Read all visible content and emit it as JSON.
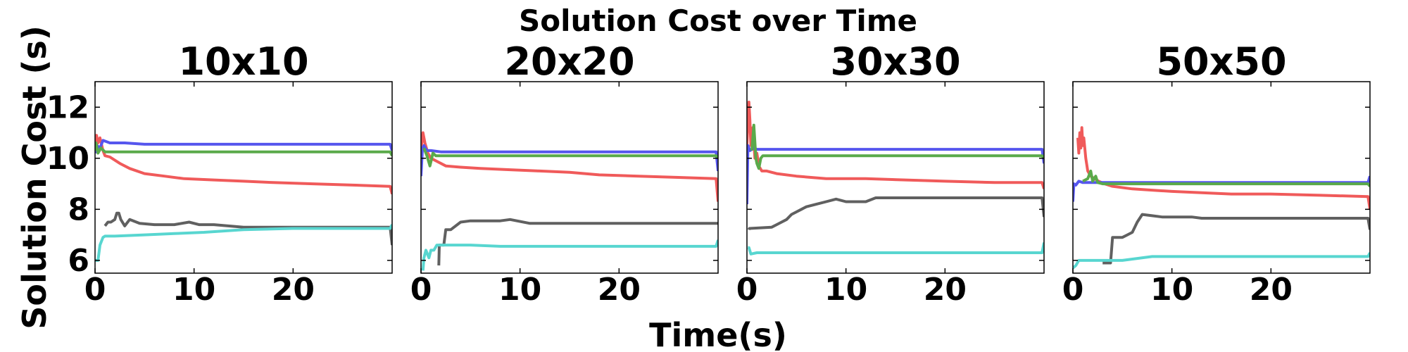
{
  "figure": {
    "title": "Solution Cost over Time",
    "xlabel": "Time(s)",
    "ylabel": "Solution Cost (s)"
  },
  "colors": {
    "red": "#f05a5a",
    "blue": "#5656ee",
    "green": "#5aaa4a",
    "gray": "#606060",
    "cyan": "#58d6d0"
  },
  "chart_data": [
    {
      "type": "line",
      "title": "10x10",
      "xlim": [
        0,
        30
      ],
      "ylim": [
        5.5,
        13
      ],
      "xticks": [
        0,
        10,
        20
      ],
      "yticks": [
        6,
        8,
        10,
        12
      ],
      "series": [
        {
          "color": "#f05a5a",
          "x": [
            0,
            0.15,
            0.3,
            0.5,
            0.8,
            1.0,
            1.5,
            2.5,
            3.5,
            5,
            7,
            9,
            12,
            15,
            18,
            22,
            26,
            29.8,
            30
          ],
          "y": [
            10.3,
            10.9,
            10.6,
            10.8,
            10.3,
            10.1,
            10.05,
            9.8,
            9.6,
            9.4,
            9.3,
            9.2,
            9.15,
            9.1,
            9.05,
            9.0,
            8.95,
            8.9,
            8.6
          ]
        },
        {
          "color": "#5656ee",
          "x": [
            0,
            0.2,
            0.5,
            0.8,
            1.5,
            3,
            5,
            10,
            20,
            29.8,
            30
          ],
          "y": [
            10.2,
            10.5,
            10.4,
            10.7,
            10.6,
            10.6,
            10.55,
            10.55,
            10.55,
            10.55,
            10.3
          ]
        },
        {
          "color": "#5aaa4a",
          "x": [
            0,
            0.1,
            0.3,
            0.6,
            1.0,
            5,
            10,
            20,
            29.8,
            30
          ],
          "y": [
            10.3,
            10.6,
            10.2,
            10.4,
            10.25,
            10.25,
            10.25,
            10.25,
            10.25,
            10.1
          ]
        },
        {
          "color": "#606060",
          "x": [
            1.0,
            1.3,
            1.6,
            2.0,
            2.2,
            2.4,
            2.6,
            3.0,
            3.5,
            4.5,
            6,
            8,
            9.5,
            10.5,
            12,
            15,
            20,
            25,
            29.8,
            30
          ],
          "y": [
            7.35,
            7.5,
            7.5,
            7.6,
            7.85,
            7.85,
            7.6,
            7.35,
            7.6,
            7.45,
            7.4,
            7.4,
            7.5,
            7.4,
            7.4,
            7.3,
            7.3,
            7.3,
            7.3,
            6.6
          ]
        },
        {
          "color": "#58d6d0",
          "x": [
            0,
            0.3,
            0.5,
            0.8,
            1.0,
            2,
            5,
            8,
            11,
            15,
            20,
            25,
            29.8,
            30
          ],
          "y": [
            6.0,
            6.0,
            6.6,
            6.9,
            6.95,
            6.95,
            7.0,
            7.05,
            7.1,
            7.2,
            7.25,
            7.25,
            7.25,
            7.4
          ]
        }
      ]
    },
    {
      "type": "line",
      "title": "20x20",
      "xlim": [
        0,
        30
      ],
      "ylim": [
        5.5,
        13
      ],
      "xticks": [
        0,
        10,
        20
      ],
      "yticks": [
        6,
        8,
        10,
        12
      ],
      "series": [
        {
          "color": "#f05a5a",
          "x": [
            0,
            0.2,
            0.4,
            0.7,
            1.0,
            1.5,
            2.5,
            4,
            6,
            9,
            12,
            15,
            18,
            22,
            26,
            29.8,
            30
          ],
          "y": [
            10.3,
            11.0,
            10.6,
            10.2,
            10.0,
            9.9,
            9.7,
            9.65,
            9.6,
            9.55,
            9.5,
            9.45,
            9.35,
            9.3,
            9.25,
            9.2,
            8.3
          ]
        },
        {
          "color": "#5656ee",
          "x": [
            0,
            0.15,
            0.3,
            0.6,
            1.0,
            2,
            5,
            10,
            20,
            29.8,
            30
          ],
          "y": [
            9.3,
            10.4,
            10.5,
            10.3,
            10.3,
            10.25,
            10.25,
            10.25,
            10.25,
            10.25,
            9.5
          ]
        },
        {
          "color": "#5aaa4a",
          "x": [
            0.3,
            0.6,
            0.9,
            1.2,
            1.5,
            2,
            5,
            10,
            20,
            29.8,
            30
          ],
          "y": [
            10.4,
            10.1,
            9.7,
            10.2,
            10.1,
            10.1,
            10.1,
            10.1,
            10.1,
            10.1,
            10.0
          ]
        },
        {
          "color": "#606060",
          "x": [
            1.8,
            1.85,
            2.0,
            2.3,
            2.5,
            3,
            4,
            5,
            8,
            9,
            11,
            30
          ],
          "y": [
            5.8,
            6.6,
            6.6,
            6.6,
            7.2,
            7.2,
            7.5,
            7.55,
            7.55,
            7.6,
            7.45,
            7.45
          ]
        },
        {
          "color": "#58d6d0",
          "x": [
            0.2,
            0.3,
            0.5,
            0.8,
            1.0,
            1.3,
            1.6,
            2.0,
            3,
            5,
            8,
            12,
            20,
            29.8,
            30
          ],
          "y": [
            5.6,
            6.1,
            6.4,
            6.1,
            6.4,
            6.4,
            6.6,
            6.6,
            6.6,
            6.6,
            6.55,
            6.55,
            6.55,
            6.55,
            6.8
          ]
        }
      ]
    },
    {
      "type": "line",
      "title": "30x30",
      "xlim": [
        0,
        30
      ],
      "ylim": [
        5.5,
        13
      ],
      "xticks": [
        0,
        10,
        20
      ],
      "yticks": [
        6,
        8,
        10,
        12
      ],
      "series": [
        {
          "color": "#f05a5a",
          "x": [
            0,
            0.2,
            0.3,
            0.4,
            0.6,
            0.8,
            1.0,
            1.2,
            1.5,
            2,
            3,
            5,
            8,
            12,
            20,
            25,
            29.8,
            30
          ],
          "y": [
            10.5,
            12.2,
            11.5,
            10.5,
            11.2,
            10.0,
            10.2,
            9.7,
            9.5,
            9.5,
            9.4,
            9.3,
            9.2,
            9.2,
            9.1,
            9.05,
            9.05,
            8.8
          ]
        },
        {
          "color": "#5656ee",
          "x": [
            0,
            0.1,
            0.3,
            0.7,
            1.0,
            2,
            5,
            10,
            20,
            29.8,
            30
          ],
          "y": [
            8.2,
            10.5,
            10.3,
            10.4,
            10.35,
            10.35,
            10.35,
            10.35,
            10.35,
            10.35,
            9.8
          ]
        },
        {
          "color": "#5aaa4a",
          "x": [
            0.5,
            0.7,
            0.9,
            1.0,
            1.2,
            1.4,
            1.6,
            2.0,
            5,
            10,
            20,
            29.8,
            30
          ],
          "y": [
            10.3,
            11.3,
            10.0,
            9.8,
            9.6,
            10.0,
            10.1,
            10.1,
            10.1,
            10.1,
            10.1,
            10.1,
            10.0
          ]
        },
        {
          "color": "#606060",
          "x": [
            0.2,
            0.25,
            2.5,
            3,
            3.5,
            4,
            4.5,
            5,
            5.5,
            6,
            7,
            8,
            9,
            10,
            12,
            13,
            15,
            29.8,
            30
          ],
          "y": [
            7.2,
            7.25,
            7.3,
            7.4,
            7.5,
            7.6,
            7.8,
            7.9,
            8.0,
            8.1,
            8.2,
            8.3,
            8.4,
            8.3,
            8.3,
            8.45,
            8.45,
            8.45,
            7.7
          ]
        },
        {
          "color": "#58d6d0",
          "x": [
            0.1,
            0.2,
            0.4,
            1.0,
            2,
            5,
            10,
            20,
            29.8,
            30
          ],
          "y": [
            6.5,
            6.5,
            6.25,
            6.3,
            6.3,
            6.3,
            6.3,
            6.3,
            6.3,
            6.7
          ]
        }
      ]
    },
    {
      "type": "line",
      "title": "50x50",
      "xlim": [
        0,
        30
      ],
      "ylim": [
        5.5,
        13
      ],
      "xticks": [
        0,
        10,
        20
      ],
      "yticks": [
        6,
        8,
        10,
        12
      ],
      "series": [
        {
          "color": "#f05a5a",
          "x": [
            0.5,
            0.6,
            0.7,
            0.8,
            0.9,
            1.0,
            1.1,
            1.3,
            1.5,
            1.8,
            2.2,
            2.6,
            3.2,
            4,
            6,
            8,
            10,
            13,
            16,
            20,
            25,
            29.8,
            30
          ],
          "y": [
            10.8,
            10.2,
            11.0,
            10.4,
            11.2,
            10.5,
            10.8,
            10.0,
            9.5,
            9.3,
            9.2,
            9.1,
            9.0,
            8.9,
            8.8,
            8.75,
            8.7,
            8.65,
            8.6,
            8.6,
            8.55,
            8.5,
            8.0
          ]
        },
        {
          "color": "#5656ee",
          "x": [
            0,
            0.1,
            0.3,
            0.6,
            1.0,
            2,
            5,
            10,
            20,
            29.8,
            30
          ],
          "y": [
            8.3,
            9.0,
            8.95,
            9.1,
            9.05,
            9.05,
            9.05,
            9.05,
            9.05,
            9.05,
            9.3
          ]
        },
        {
          "color": "#5aaa4a",
          "x": [
            1.0,
            1.5,
            1.8,
            2.0,
            2.3,
            2.5,
            3,
            5,
            10,
            20,
            29.8,
            30
          ],
          "y": [
            9.1,
            9.2,
            9.5,
            9.1,
            9.3,
            9.05,
            9.0,
            9.0,
            9.0,
            9.0,
            9.0,
            8.9
          ]
        },
        {
          "color": "#606060",
          "x": [
            3.0,
            3.8,
            4.0,
            5,
            5.5,
            6,
            6.5,
            7,
            8,
            9,
            10,
            12,
            13,
            20,
            29.8,
            30
          ],
          "y": [
            5.9,
            5.9,
            6.9,
            6.9,
            7.0,
            7.1,
            7.5,
            7.8,
            7.75,
            7.7,
            7.7,
            7.7,
            7.65,
            7.65,
            7.65,
            7.2
          ]
        },
        {
          "color": "#58d6d0",
          "x": [
            0,
            0.3,
            0.6,
            1.0,
            2,
            5,
            8,
            10,
            20,
            29.8,
            30
          ],
          "y": [
            5.7,
            5.8,
            6.0,
            6.0,
            6.0,
            6.0,
            6.15,
            6.15,
            6.15,
            6.15,
            6.3
          ]
        }
      ]
    }
  ]
}
